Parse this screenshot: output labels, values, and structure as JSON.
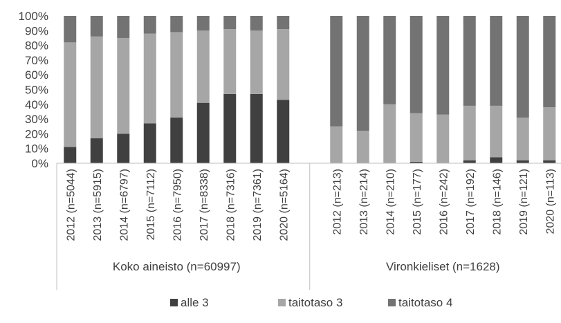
{
  "chart_data": {
    "type": "bar",
    "stacked": true,
    "percent": true,
    "ylim": [
      0,
      100
    ],
    "yticks": [
      "0%",
      "10%",
      "20%",
      "30%",
      "40%",
      "50%",
      "60%",
      "70%",
      "80%",
      "90%",
      "100%"
    ],
    "grid": false,
    "legend_position": "bottom",
    "groups": [
      {
        "label": "Koko aineisto (n=60997)",
        "categories": [
          "2012 (n=5044)",
          "2013 (n=5915)",
          "2014 (n=6797)",
          "2015 (n=7112)",
          "2016 (n=7950)",
          "2017 (n=8338)",
          "2018 (n=7316)",
          "2019 (n=7361)",
          "2020 (n=5164)"
        ]
      },
      {
        "label": "Vironkieliset (n=1628)",
        "categories": [
          "2012 (n=213)",
          "2013 (n=214)",
          "2014 (n=210)",
          "2015 (n=177)",
          "2016 (n=242)",
          "2017 (n=192)",
          "2018 (n=146)",
          "2019 (n=121)",
          "2020 (n=113)"
        ]
      }
    ],
    "series": [
      {
        "name": "alle 3",
        "color": "#404040",
        "values": [
          11,
          17,
          20,
          27,
          31,
          41,
          47,
          47,
          43,
          0,
          0,
          0,
          1,
          0,
          2,
          4,
          2,
          2
        ]
      },
      {
        "name": "taitotaso 3",
        "color": "#a6a6a6",
        "values": [
          71,
          69,
          65,
          61,
          58,
          49,
          44,
          43,
          48,
          25,
          22,
          40,
          33,
          33,
          37,
          35,
          29,
          36
        ]
      },
      {
        "name": "taitotaso 4",
        "color": "#737373",
        "values": [
          18,
          14,
          15,
          12,
          11,
          10,
          9,
          10,
          9,
          75,
          78,
          60,
          66,
          67,
          61,
          61,
          69,
          62
        ]
      }
    ]
  }
}
